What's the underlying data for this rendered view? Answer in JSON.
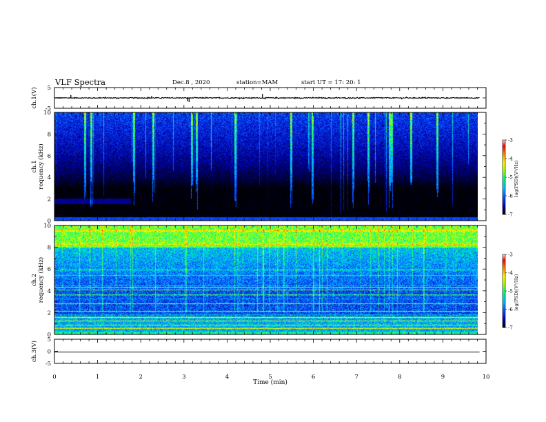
{
  "header": {
    "title": "VLF Spectra",
    "date": "Dec.8 , 2020",
    "station": "station=MAM",
    "start_ut": "start UT = 17: 20: 1"
  },
  "colors": {
    "background": "#ffffff",
    "trace": "#000000",
    "colormap": [
      "#000000",
      "#0000a8",
      "#0a48ff",
      "#00c0ff",
      "#00ff80",
      "#b8ff00",
      "#ffff00",
      "#ff8000",
      "#ff0000",
      "#ffe0e0"
    ]
  },
  "chart_data": [
    {
      "type": "line",
      "name": "ch1-waveform",
      "ylabel": "ch.1(V)",
      "ylim": [
        -5,
        5
      ],
      "yticks": [
        "5",
        "-5"
      ],
      "xlim": [
        0,
        10
      ],
      "baseline": 0,
      "noise_amplitude": 0.2,
      "spikes": [
        {
          "x": 0.38,
          "y": 1.4
        },
        {
          "x": 2.25,
          "y": 0.9
        },
        {
          "x": 3.08,
          "y": -1.6
        },
        {
          "x": 3.12,
          "y": -2.0
        },
        {
          "x": 4.82,
          "y": 1.9
        }
      ],
      "grid": false
    },
    {
      "type": "heatmap",
      "name": "ch1-spectrogram",
      "ylabel": "ch.1 Frequency (kHz)",
      "ylim": [
        0,
        10
      ],
      "yticks": [
        "0",
        "2",
        "4",
        "6",
        "8",
        "10"
      ],
      "xlim": [
        0,
        9.85
      ],
      "colorbar": {
        "label": "log(PSD)(V²/Hz)",
        "range": [
          -7,
          -3
        ],
        "ticks": [
          "-3",
          "-4",
          "-5",
          "-6",
          "-7"
        ]
      },
      "description_levels": {
        "low_freq_level": -7,
        "high_freq_level": -6.2
      },
      "vertical_events": [
        0.7,
        0.85,
        1.85,
        2.3,
        3.2,
        3.3,
        4.2,
        5.5,
        6.0,
        6.95,
        7.3,
        7.8,
        7.85,
        8.3,
        8.9
      ]
    },
    {
      "type": "heatmap",
      "name": "ch2-spectrogram",
      "ylabel": "ch.2 Frequency (kHz)",
      "ylim": [
        0,
        10
      ],
      "yticks": [
        "0",
        "2",
        "4",
        "6",
        "8",
        "10"
      ],
      "xlim": [
        0,
        9.85
      ],
      "colorbar": {
        "label": "log(PSD)(V²/Hz)",
        "range": [
          -7,
          -3
        ],
        "ticks": [
          "-3",
          "-4",
          "-5",
          "-6",
          "-7"
        ]
      },
      "description_levels": {
        "above_8khz_level": -4.8,
        "4_to_8khz_level": -5.6,
        "below_4khz_level": -6.1
      },
      "horizontal_lines_khz": [
        0.5,
        0.8,
        1.2,
        1.5,
        2.1,
        2.8,
        3.6,
        4.1,
        4.3
      ]
    },
    {
      "type": "line",
      "name": "ch3-waveform",
      "ylabel": "ch.3(V)",
      "ylim": [
        -5,
        5
      ],
      "yticks": [
        "5",
        "0",
        "-5"
      ],
      "xlim": [
        0,
        9.85
      ],
      "baseline": -0.3,
      "grid": false
    }
  ],
  "xaxis": {
    "label": "Time (min)",
    "ticks": [
      "0",
      "1",
      "2",
      "3",
      "4",
      "5",
      "6",
      "7",
      "8",
      "9",
      "10"
    ]
  }
}
